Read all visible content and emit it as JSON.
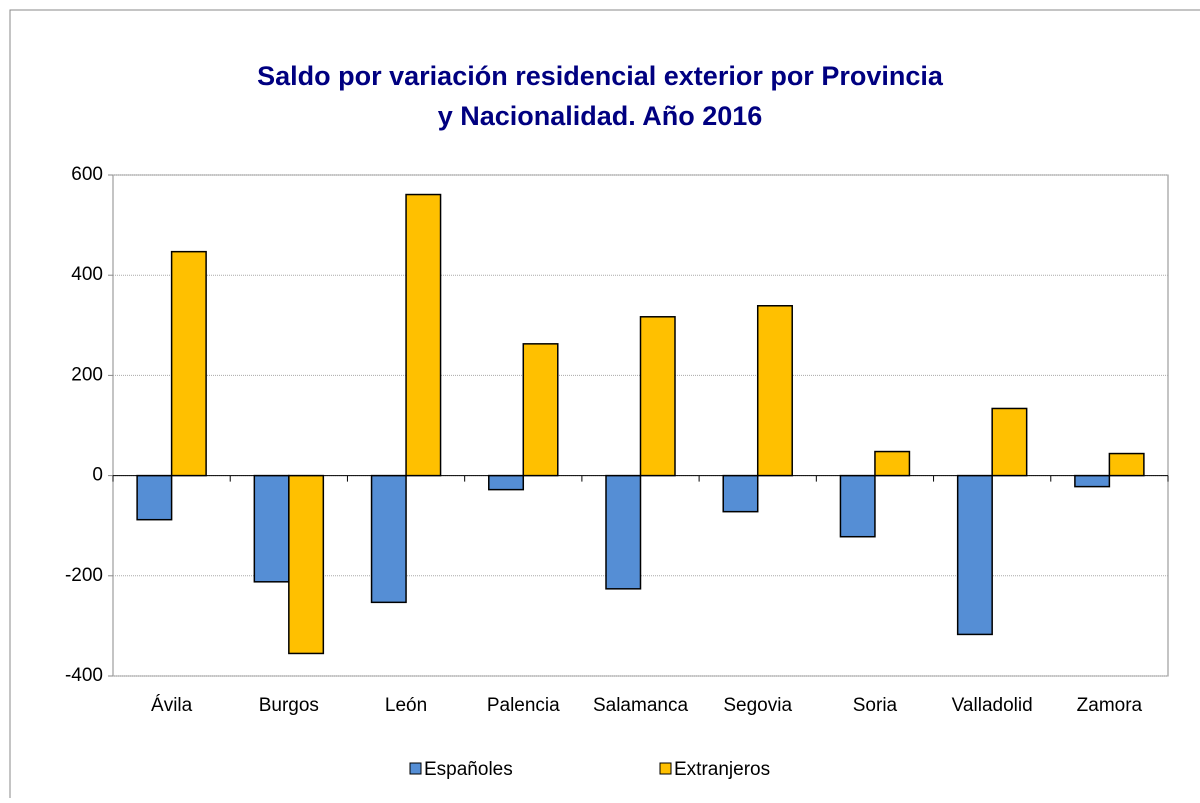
{
  "chart_data": {
    "type": "bar",
    "title": [
      "Saldo por variación residencial exterior por Provincia",
      "y Nacionalidad. Año 2016"
    ],
    "categories": [
      "Ávila",
      "Burgos",
      "León",
      "Palencia",
      "Salamanca",
      "Segovia",
      "Soria",
      "Valladolid",
      "Zamora"
    ],
    "series": [
      {
        "name": "Españoles",
        "color": "#558ed5",
        "values": [
          -88,
          -212,
          -253,
          -28,
          -226,
          -72,
          -122,
          -317,
          -22
        ]
      },
      {
        "name": "Extranjeros",
        "color": "#ffc000",
        "values": [
          447,
          -355,
          561,
          263,
          317,
          339,
          48,
          134,
          44
        ]
      }
    ],
    "ylim": [
      -400,
      600
    ],
    "yticks": [
      -400,
      -200,
      0,
      200,
      400,
      600
    ],
    "grid": true,
    "legend": "bottom"
  }
}
